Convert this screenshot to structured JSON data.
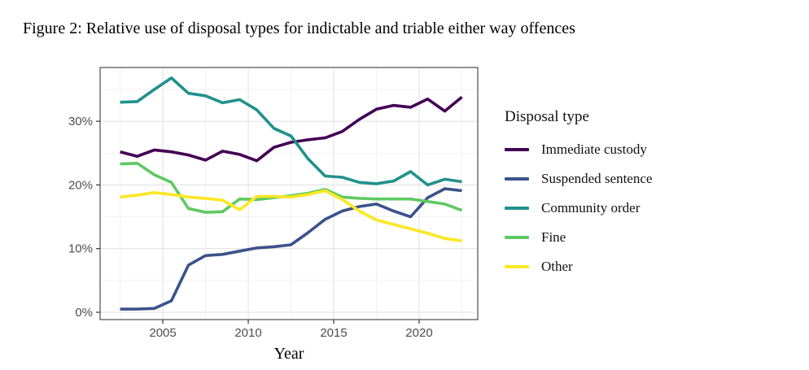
{
  "title": "Figure 2: Relative use of disposal types for indictable and triable either way offences",
  "chart_data": {
    "type": "line",
    "title": "Figure 2: Relative use of disposal types for indictable and triable either way offences",
    "xlabel": "Year",
    "ylabel": "",
    "legend_title": "Disposal type",
    "legend_position": "right",
    "grid": true,
    "panel_border_color": "#5a5a5a",
    "major_grid_color": "#e3e3e3",
    "minor_grid_color": "#f0f0f0",
    "axis_text_color": "#4d4d4d",
    "x": [
      2002.5,
      2003.5,
      2004.5,
      2005.5,
      2006.5,
      2007.5,
      2008.5,
      2009.5,
      2010.5,
      2011.5,
      2012.5,
      2013.5,
      2014.5,
      2015.5,
      2016.5,
      2017.5,
      2018.5,
      2019.5,
      2020.5,
      2021.5,
      2022.5
    ],
    "x_range": [
      2001.33,
      2023.43
    ],
    "y_range_pct": [
      -1.15,
      38.45
    ],
    "x_tick_values": [
      2005,
      2010,
      2015,
      2020
    ],
    "x_tick_labels": [
      "2005",
      "2010",
      "2015",
      "2020"
    ],
    "x_minor_values": [
      2002.5,
      2007.5,
      2012.5,
      2017.5,
      2022.5
    ],
    "y_tick_values": [
      0,
      10,
      20,
      30
    ],
    "y_tick_labels": [
      "0%",
      "10%",
      "20%",
      "30%"
    ],
    "y_minor_values": [
      5,
      15,
      25,
      35
    ],
    "series": [
      {
        "name": "Immediate custody",
        "color": "#440154",
        "values": [
          25.2,
          24.5,
          25.5,
          25.2,
          24.7,
          23.9,
          25.3,
          24.8,
          23.8,
          25.9,
          26.7,
          27.1,
          27.4,
          28.4,
          30.3,
          31.9,
          32.5,
          32.2,
          33.5,
          31.6,
          33.8
        ]
      },
      {
        "name": "Suspended sentence",
        "color": "#3b528b",
        "values": [
          0.5,
          0.5,
          0.6,
          1.8,
          7.4,
          8.9,
          9.1,
          9.6,
          10.1,
          10.3,
          10.6,
          12.5,
          14.6,
          15.9,
          16.6,
          17.0,
          15.9,
          15.0,
          18.0,
          19.4,
          19.1
        ]
      },
      {
        "name": "Community order",
        "color": "#21918c",
        "values": [
          33.0,
          33.1,
          35.0,
          36.8,
          34.4,
          34.0,
          32.9,
          33.4,
          31.8,
          28.9,
          27.7,
          24.1,
          21.4,
          21.2,
          20.4,
          20.2,
          20.6,
          22.1,
          20.0,
          20.9,
          20.5
        ]
      },
      {
        "name": "Fine",
        "color": "#5ec962",
        "values": [
          23.3,
          23.4,
          21.6,
          20.4,
          16.3,
          15.7,
          15.8,
          17.8,
          17.7,
          18.0,
          18.3,
          18.7,
          19.3,
          18.1,
          17.9,
          17.8,
          17.8,
          17.8,
          17.4,
          17.0,
          16.0
        ]
      },
      {
        "name": "Other",
        "color": "#fde725",
        "values": [
          18.1,
          18.4,
          18.8,
          18.5,
          18.1,
          17.9,
          17.6,
          16.1,
          18.2,
          18.2,
          18.1,
          18.5,
          19.1,
          17.7,
          15.9,
          14.5,
          13.8,
          13.1,
          12.4,
          11.6,
          11.2
        ]
      }
    ]
  }
}
